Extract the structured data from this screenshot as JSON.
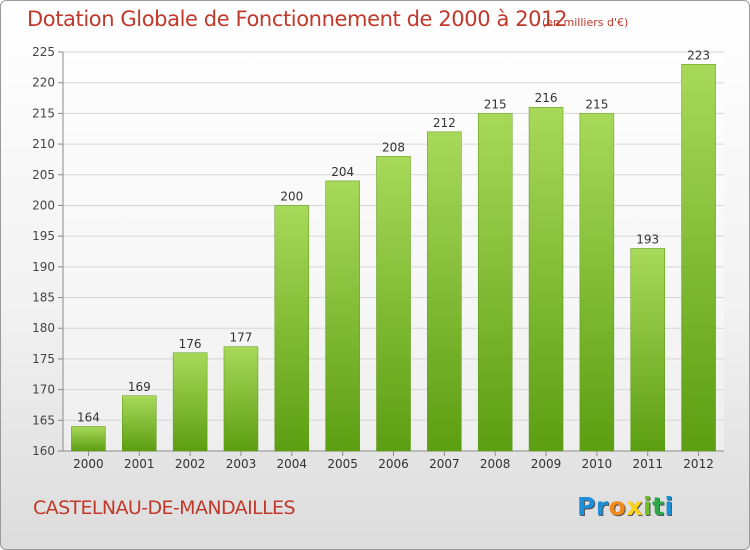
{
  "title": "Dotation Globale de Fonctionnement de 2000 à 2012",
  "subtitle": "(en milliers d'€)",
  "commune": "CASTELNAU-DE-MANDAILLES",
  "brand": {
    "letters": [
      {
        "ch": "P",
        "color": "#1d8fd6"
      },
      {
        "ch": "r",
        "color": "#1d8fd6"
      },
      {
        "ch": "o",
        "color": "#f08a1c"
      },
      {
        "ch": "x",
        "color": "#ffd21a"
      },
      {
        "ch": "i",
        "color": "#6fbf2a"
      },
      {
        "ch": "t",
        "color": "#2ca84a"
      },
      {
        "ch": "i",
        "color": "#1d8fd6"
      }
    ]
  },
  "chart_data": {
    "type": "bar",
    "categories": [
      "2000",
      "2001",
      "2002",
      "2003",
      "2004",
      "2005",
      "2006",
      "2007",
      "2008",
      "2009",
      "2010",
      "2011",
      "2012"
    ],
    "values": [
      164,
      169,
      176,
      177,
      200,
      204,
      208,
      212,
      215,
      216,
      215,
      193,
      223
    ],
    "ylim": [
      160,
      225
    ],
    "yticks": [
      160,
      165,
      170,
      175,
      180,
      185,
      190,
      195,
      200,
      205,
      210,
      215,
      220,
      225
    ],
    "grid": true,
    "bar_color_top": "#a8d95a",
    "bar_color_bottom": "#5c9e12"
  }
}
